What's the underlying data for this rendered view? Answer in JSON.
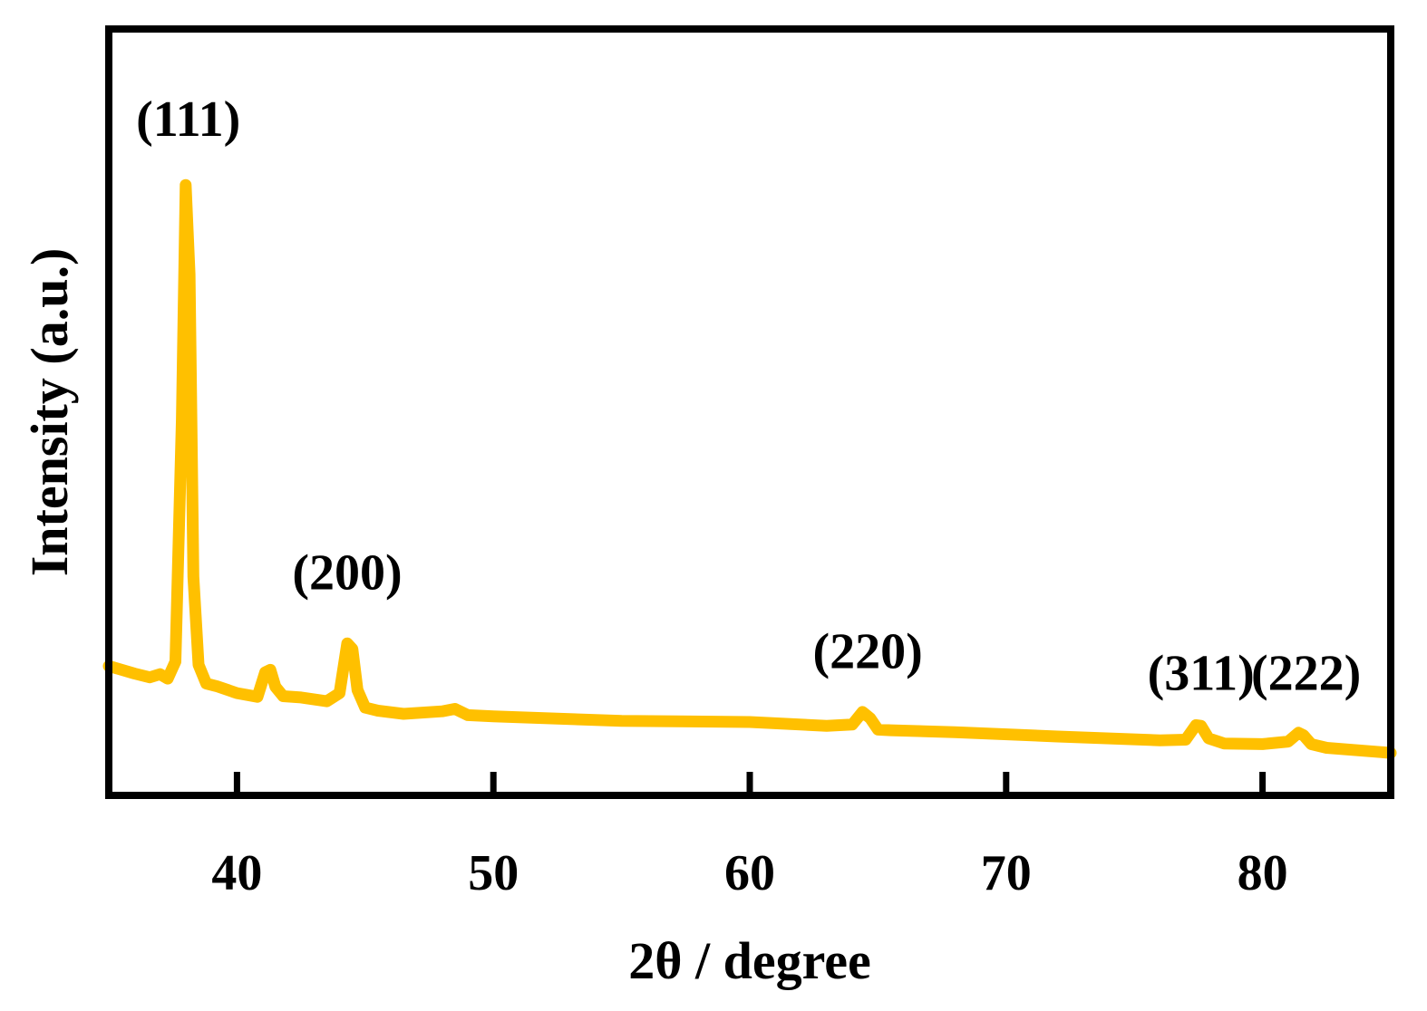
{
  "chart_data": {
    "type": "line",
    "title": "",
    "xlabel": "2θ / degree",
    "ylabel": "Intensity (a.u.)",
    "xlim": [
      35,
      85
    ],
    "ylim": [
      0,
      100
    ],
    "x_ticks": [
      40,
      50,
      60,
      70,
      80
    ],
    "y_ticks": [],
    "grid": false,
    "legend": "none",
    "series": [
      {
        "color": "#FFC000",
        "x": [
          35.0,
          36.0,
          36.6,
          37.0,
          37.3,
          37.6,
          37.85,
          38.0,
          38.15,
          38.3,
          38.5,
          38.8,
          39.2,
          40.0,
          40.8,
          41.1,
          41.3,
          41.5,
          41.8,
          42.5,
          43.5,
          44.0,
          44.3,
          44.5,
          44.7,
          45.0,
          45.5,
          46.5,
          48.0,
          48.5,
          49.0,
          50.0,
          55.0,
          60.0,
          63.0,
          64.0,
          64.4,
          64.7,
          65.0,
          65.5,
          68.0,
          72.0,
          76.0,
          77.0,
          77.4,
          77.6,
          77.9,
          78.5,
          80.0,
          81.0,
          81.4,
          81.6,
          81.9,
          82.5,
          85.0
        ],
        "y": [
          15.8,
          14.6,
          14.0,
          14.5,
          13.8,
          16.5,
          55.0,
          92.2,
          78.0,
          30.0,
          16.0,
          13.0,
          12.6,
          11.5,
          10.9,
          14.8,
          15.2,
          12.5,
          11.0,
          10.8,
          10.2,
          11.5,
          19.4,
          18.5,
          12.0,
          9.2,
          8.7,
          8.2,
          8.6,
          9.0,
          8.0,
          7.8,
          7.1,
          6.9,
          6.3,
          6.5,
          8.5,
          7.5,
          5.7,
          5.6,
          5.3,
          4.6,
          4.0,
          4.1,
          6.4,
          6.3,
          4.3,
          3.5,
          3.4,
          3.8,
          5.2,
          4.8,
          3.4,
          2.8,
          2.0
        ]
      }
    ],
    "annotations": [
      {
        "text": "(111)",
        "x": 38.1,
        "y": 100.0
      },
      {
        "text": "(200)",
        "x": 44.3,
        "y": 28.0
      },
      {
        "text": "(220)",
        "x": 64.6,
        "y": 15.5
      },
      {
        "text": "(311)",
        "x": 77.6,
        "y": 12.0
      },
      {
        "text": "(222)",
        "x": 81.7,
        "y": 12.0
      }
    ]
  }
}
